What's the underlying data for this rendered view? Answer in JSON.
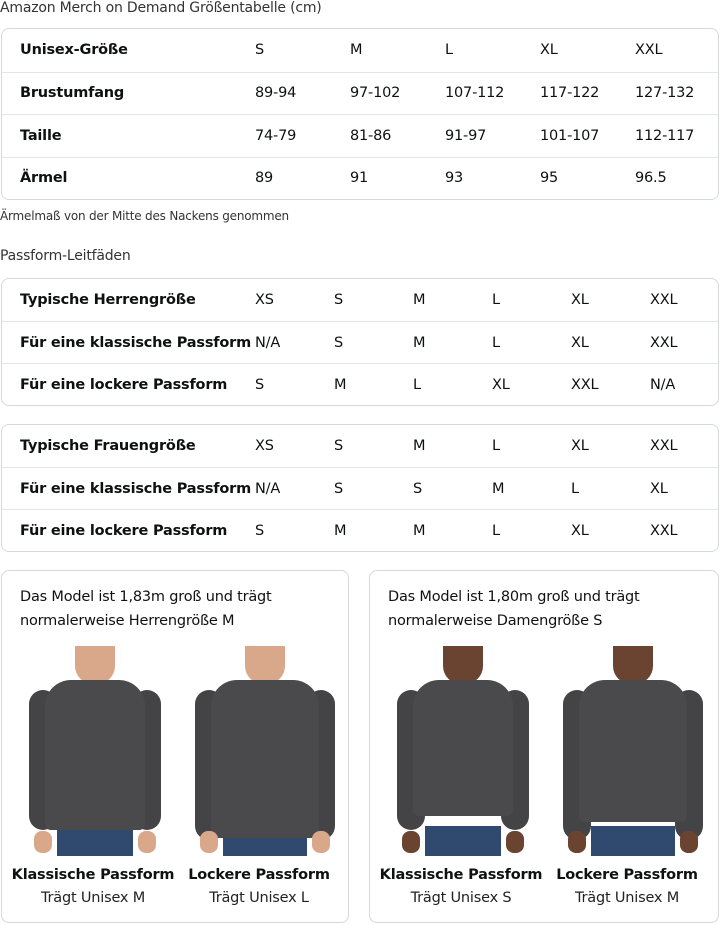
{
  "title": "Amazon Merch on Demand Größentabelle (cm)",
  "size_table": {
    "rows": [
      [
        "Unisex-Größe",
        "S",
        "M",
        "L",
        "XL",
        "XXL"
      ],
      [
        "Brustumfang",
        "89-94",
        "97-102",
        "107-112",
        "117-122",
        "127-132"
      ],
      [
        "Taille",
        "74-79",
        "81-86",
        "91-97",
        "101-107",
        "112-117"
      ],
      [
        "Ärmel",
        "89",
        "91",
        "93",
        "95",
        "96.5"
      ]
    ]
  },
  "sleeve_note": "Ärmelmaß von der Mitte des Nackens genommen",
  "fit_heading": "Passform-Leitfäden",
  "men_table": {
    "rows": [
      [
        "Typische Herrengröße",
        "XS",
        "S",
        "M",
        "L",
        "XL",
        "XXL"
      ],
      [
        "Für eine klassische Passform",
        "N/A",
        "S",
        "M",
        "L",
        "XL",
        "XXL"
      ],
      [
        "Für eine lockere Passform",
        "S",
        "M",
        "L",
        "XL",
        "XXL",
        "N/A"
      ]
    ]
  },
  "women_table": {
    "rows": [
      [
        "Typische Frauengröße",
        "XS",
        "S",
        "M",
        "L",
        "XL",
        "XXL"
      ],
      [
        "Für eine klassische Passform",
        "N/A",
        "S",
        "S",
        "M",
        "L",
        "XL"
      ],
      [
        "Für eine lockere Passform",
        "S",
        "M",
        "M",
        "L",
        "XL",
        "XXL"
      ]
    ]
  },
  "cards": [
    {
      "caption_line1": "Das Model ist 1,83m groß und trägt",
      "caption_line2": "normalerweise Herrengröße M",
      "fits": [
        {
          "title": "Klassische Passform",
          "sub": "Trägt Unisex M"
        },
        {
          "title": "Lockere Passform",
          "sub": "Trägt Unisex L"
        }
      ]
    },
    {
      "caption_line1": "Das Model ist 1,80m groß und trägt",
      "caption_line2": "normalerweise Damengröße S",
      "fits": [
        {
          "title": "Klassische Passform",
          "sub": "Trägt Unisex S"
        },
        {
          "title": "Lockere Passform",
          "sub": "Trägt Unisex M"
        }
      ]
    }
  ],
  "colors": {
    "border": "#d5d9d9",
    "sweatshirt": "#4a4a4c",
    "jeans": "#2f4a6e"
  }
}
